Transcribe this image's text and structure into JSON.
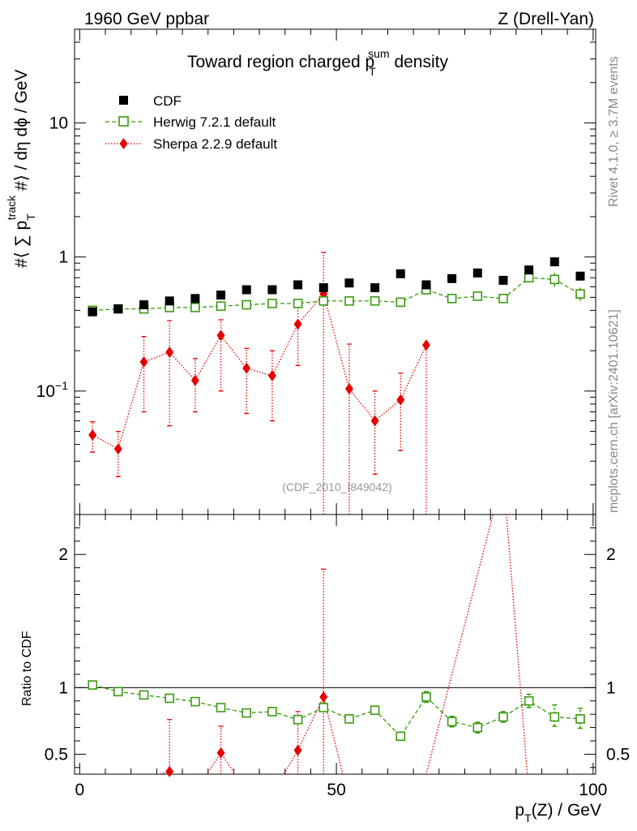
{
  "header": {
    "left": "1960 GeV ppbar",
    "right": "Z (Drell-Yan)"
  },
  "side_labels": {
    "rivet": "Rivet 4.1.0, ≥ 3.7M events",
    "mcplots": "mcplots.cern.ch [arXiv:2401.10621]"
  },
  "watermark": "(CDF_2010_I849042)",
  "colors": {
    "cdf": "#000000",
    "herwig": "#3a9a10",
    "sherpa": "#e60000"
  },
  "chart_data": [
    {
      "type": "scatter",
      "title": "Toward region charged p_T^sum density",
      "title_parts": {
        "pre": "Toward region charged p",
        "sup": "sum",
        "sub": "T",
        "post": " density"
      },
      "ylabel_parts": {
        "a": "#⟨ ∑ p",
        "sup": "track",
        "sub": "T",
        "b": " #⟩ / dη dϕ / GeV"
      },
      "yscale": "log",
      "ylim": [
        0.012,
        50
      ],
      "yticks": [
        {
          "v": 0.1,
          "base": "10",
          "exp": "−1"
        },
        {
          "v": 1,
          "label": "1"
        },
        {
          "v": 10,
          "label": "10"
        }
      ],
      "xlim": [
        -1,
        100.5
      ],
      "legend_position": "top-left",
      "x": [
        2.5,
        7.5,
        12.5,
        17.5,
        22.5,
        27.5,
        32.5,
        37.5,
        42.5,
        47.5,
        52.5,
        57.5,
        62.5,
        67.5,
        72.5,
        77.5,
        82.5,
        87.5,
        92.5,
        97.5
      ],
      "series": [
        {
          "name": "CDF",
          "style": "square",
          "values": [
            0.39,
            0.41,
            0.44,
            0.47,
            0.49,
            0.52,
            0.57,
            0.57,
            0.62,
            0.59,
            0.64,
            0.59,
            0.75,
            0.62,
            0.69,
            0.76,
            0.67,
            0.8,
            0.92,
            0.72
          ]
        },
        {
          "name": "Herwig 7.2.1 default",
          "style": "open-square",
          "values": [
            0.4,
            0.41,
            0.41,
            0.42,
            0.42,
            0.43,
            0.44,
            0.45,
            0.45,
            0.47,
            0.47,
            0.47,
            0.46,
            0.57,
            0.49,
            0.51,
            0.49,
            0.7,
            0.68,
            0.53
          ],
          "err_lo": [
            0.02,
            0.02,
            0.02,
            0.02,
            0.02,
            0.02,
            0.02,
            0.02,
            0.02,
            0.03,
            0.02,
            0.02,
            0.02,
            0.04,
            0.03,
            0.03,
            0.03,
            0.05,
            0.08,
            0.06
          ],
          "err_hi": [
            0.02,
            0.02,
            0.02,
            0.02,
            0.02,
            0.02,
            0.02,
            0.02,
            0.02,
            0.03,
            0.02,
            0.02,
            0.02,
            0.04,
            0.03,
            0.03,
            0.03,
            0.05,
            0.08,
            0.06
          ]
        },
        {
          "name": "Sherpa 2.2.9 default",
          "style": "diamond",
          "x": [
            2.5,
            7.5,
            12.5,
            17.5,
            22.5,
            27.5,
            32.5,
            37.5,
            42.5,
            47.5,
            52.5,
            57.5,
            62.5,
            67.5
          ],
          "values": [
            0.047,
            0.037,
            0.165,
            0.195,
            0.12,
            0.26,
            0.148,
            0.13,
            0.315,
            0.53,
            0.104,
            0.06,
            0.086,
            0.22
          ],
          "err_lo": [
            0.012,
            0.014,
            0.095,
            0.14,
            0.05,
            0.16,
            0.08,
            0.07,
            0.16,
            0.52,
            0.1,
            0.036,
            0.05,
            0.21
          ],
          "err_hi": [
            0.012,
            0.013,
            0.09,
            0.14,
            0.055,
            0.08,
            0.06,
            0.07,
            0.11,
            0.55,
            0.12,
            0.04,
            0.05,
            0.0
          ]
        }
      ]
    },
    {
      "type": "line",
      "ylabel": "Ratio to CDF",
      "yscale": "linear",
      "ylim": [
        0.35,
        2.3
      ],
      "yticks": [
        0.5,
        1,
        2
      ],
      "ytick_labels": [
        "0.5",
        "1",
        "2"
      ],
      "xlim": [
        -1,
        100.5
      ],
      "xticks": [
        0,
        50,
        100
      ],
      "xtick_labels": [
        "0",
        "50",
        "100"
      ],
      "xlabel_parts": {
        "a": "p",
        "sub": "T",
        "b": "(Z) / GeV"
      },
      "reference_line": 1,
      "x": [
        2.5,
        7.5,
        12.5,
        17.5,
        22.5,
        27.5,
        32.5,
        37.5,
        42.5,
        47.5,
        52.5,
        57.5,
        62.5,
        67.5,
        72.5,
        77.5,
        82.5,
        87.5,
        92.5,
        97.5
      ],
      "series": [
        {
          "name": "Herwig 7.2.1 default",
          "values": [
            1.02,
            0.97,
            0.945,
            0.92,
            0.895,
            0.85,
            0.81,
            0.82,
            0.76,
            0.85,
            0.765,
            0.83,
            0.635,
            0.93,
            0.745,
            0.7,
            0.78,
            0.9,
            0.78,
            0.765
          ],
          "err_lo": [
            0.01,
            0.01,
            0.01,
            0.01,
            0.01,
            0.01,
            0.01,
            0.01,
            0.01,
            0.02,
            0.01,
            0.03,
            0.03,
            0.04,
            0.04,
            0.04,
            0.04,
            0.05,
            0.07,
            0.07
          ],
          "err_hi": [
            0.01,
            0.01,
            0.01,
            0.01,
            0.01,
            0.01,
            0.01,
            0.01,
            0.01,
            0.02,
            0.01,
            0.03,
            0.03,
            0.04,
            0.04,
            0.04,
            0.04,
            0.05,
            0.09,
            0.08
          ]
        },
        {
          "name": "Sherpa 2.2.9 default",
          "x": [
            17.5,
            27.5,
            42.5,
            47.5
          ],
          "values": [
            0.37,
            0.51,
            0.53,
            0.93
          ],
          "err_lo": [
            0.1,
            0.3,
            0.2,
            0.62
          ],
          "err_hi": [
            0.39,
            0.2,
            0.29,
            0.96
          ],
          "off_scale_line": [
            [
              12.5,
              0.32
            ],
            [
              17.5,
              0.37
            ],
            [
              22.5,
              0.22
            ],
            [
              27.5,
              0.51
            ],
            [
              32.5,
              0.22
            ],
            [
              37.5,
              0.2
            ],
            [
              42.5,
              0.53
            ],
            [
              47.5,
              0.93
            ],
            [
              52.5,
              0.16
            ],
            [
              67.5,
              0.35
            ],
            [
              82.5,
              2.6
            ],
            [
              87.5,
              0.2
            ]
          ]
        }
      ]
    }
  ]
}
